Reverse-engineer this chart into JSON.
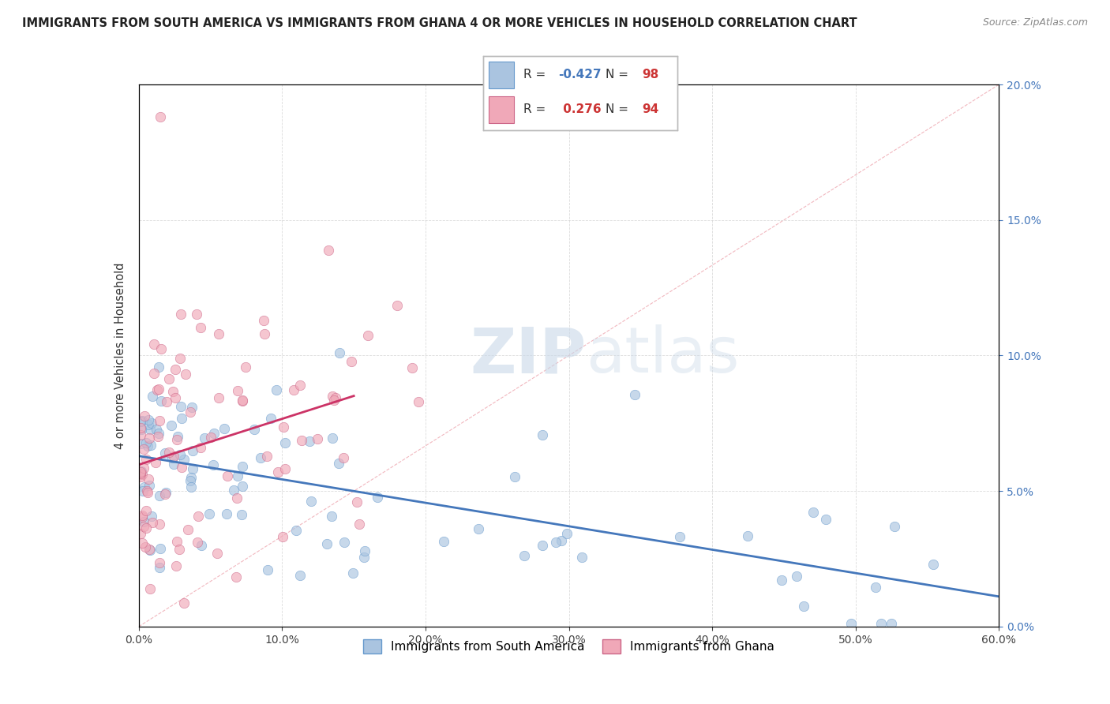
{
  "title": "IMMIGRANTS FROM SOUTH AMERICA VS IMMIGRANTS FROM GHANA 4 OR MORE VEHICLES IN HOUSEHOLD CORRELATION CHART",
  "source": "Source: ZipAtlas.com",
  "ylabel_label": "4 or more Vehicles in Household",
  "legend_label1": "Immigrants from South America",
  "legend_label2": "Immigrants from Ghana",
  "r1": -0.427,
  "n1": 98,
  "r2": 0.276,
  "n2": 94,
  "color_blue": "#aac4e0",
  "color_blue_edge": "#6699cc",
  "color_blue_line": "#4477bb",
  "color_pink": "#f0a8b8",
  "color_pink_edge": "#cc6688",
  "color_pink_line": "#cc3366",
  "xmin": 0.0,
  "xmax": 0.6,
  "ymin": 0.0,
  "ymax": 0.2,
  "watermark_zip": "ZIP",
  "watermark_atlas": "atlas",
  "bg_color": "#ffffff",
  "grid_color": "#cccccc",
  "ref_line_color": "#f0b0b8",
  "r1_color": "#4477bb",
  "n_color": "#cc3333",
  "r2_color": "#cc3333"
}
